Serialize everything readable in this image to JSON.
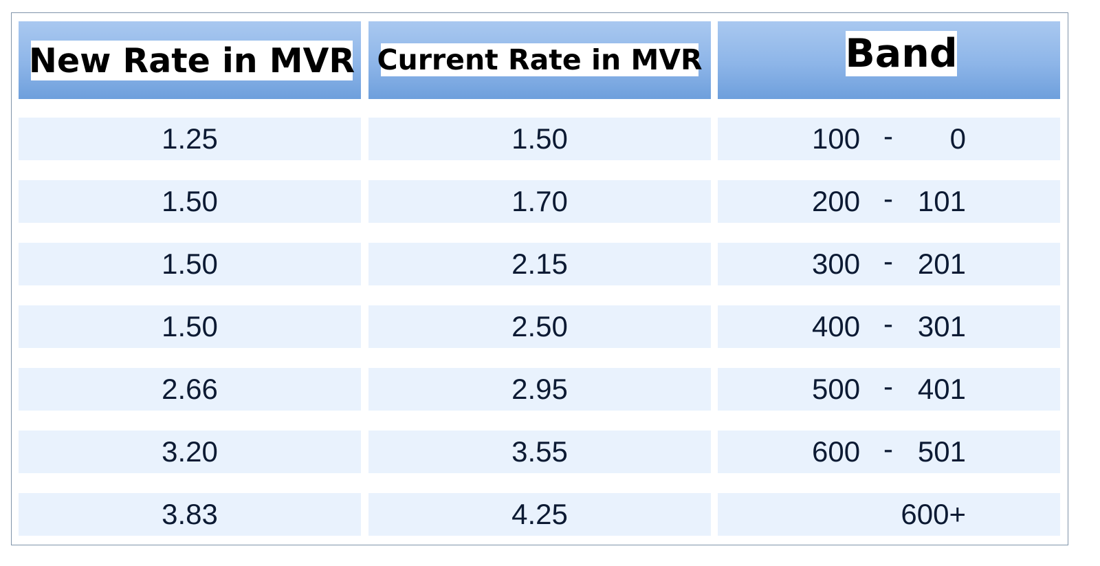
{
  "table": {
    "headers": {
      "new_rate": "New Rate in MVR",
      "current_rate": "Current Rate in MVR",
      "band": "Band"
    },
    "band_separator": "-",
    "rows": [
      {
        "new_rate": "1.25",
        "current_rate": "1.50",
        "band_from": "100",
        "band_to": "0"
      },
      {
        "new_rate": "1.50",
        "current_rate": "1.70",
        "band_from": "200",
        "band_to": "101"
      },
      {
        "new_rate": "1.50",
        "current_rate": "2.15",
        "band_from": "300",
        "band_to": "201"
      },
      {
        "new_rate": "1.50",
        "current_rate": "2.50",
        "band_from": "400",
        "band_to": "301"
      },
      {
        "new_rate": "2.66",
        "current_rate": "2.95",
        "band_from": "500",
        "band_to": "401"
      },
      {
        "new_rate": "3.20",
        "current_rate": "3.55",
        "band_from": "600",
        "band_to": "501"
      },
      {
        "new_rate": "3.83",
        "current_rate": "4.25",
        "band_single": "600+"
      }
    ]
  },
  "colors": {
    "header_top": "#a9c8f0",
    "header_bottom": "#6e9fdc",
    "row_fill": "#e9f2fd",
    "text": "#0c1a33",
    "border": "#7f93a9"
  }
}
